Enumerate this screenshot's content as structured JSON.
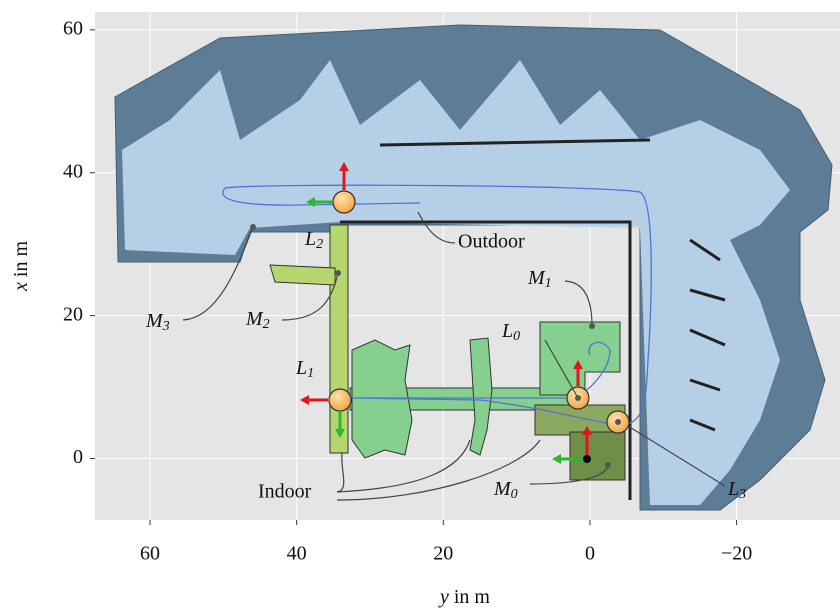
{
  "chart_data": {
    "type": "map",
    "xlabel": {
      "var": "y",
      "rest": " in m"
    },
    "ylabel": {
      "var": "x",
      "rest": " in m"
    },
    "xlim": [
      67.5,
      -34.1
    ],
    "ylim": [
      62.5,
      -8.6
    ],
    "xticks": [
      60,
      40,
      20,
      0,
      {
        "value": -20,
        "label": "−20"
      }
    ],
    "yticks": [
      60,
      40,
      20,
      0
    ],
    "grid": true,
    "labels": {
      "outdoor": "Outdoor",
      "indoor": "Indoor",
      "L0": {
        "text": "L",
        "sub": "0"
      },
      "L1": {
        "text": "L",
        "sub": "1"
      },
      "L2": {
        "text": "L",
        "sub": "2"
      },
      "L3": {
        "text": "L",
        "sub": "3"
      },
      "M0": {
        "text": "M",
        "sub": "0"
      },
      "M1": {
        "text": "M",
        "sub": "1"
      },
      "M2": {
        "text": "M",
        "sub": "2"
      },
      "M3": {
        "text": "M",
        "sub": "3"
      }
    }
  }
}
